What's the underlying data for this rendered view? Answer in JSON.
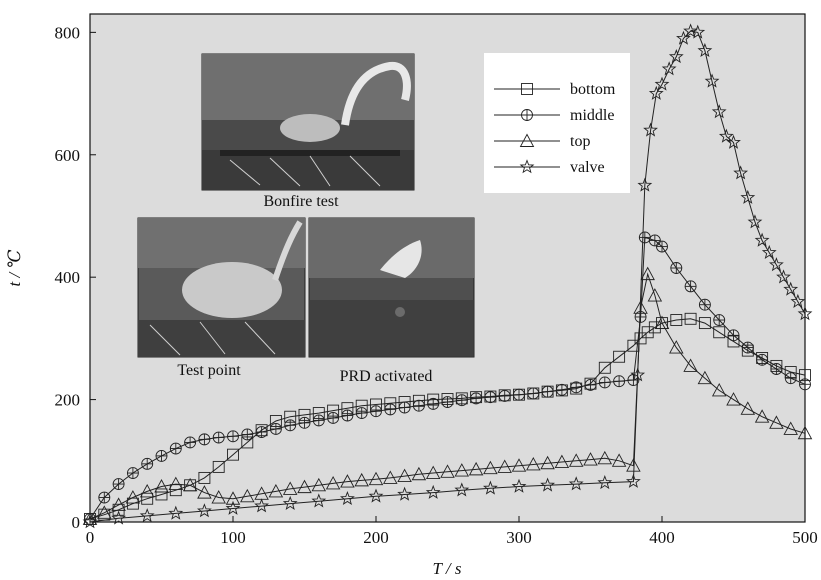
{
  "chart_data": {
    "type": "line",
    "title": "",
    "xlabel": "T / s",
    "ylabel": "t / ℃",
    "xlim": [
      0,
      500
    ],
    "ylim": [
      0,
      830
    ],
    "xticks": [
      0,
      100,
      200,
      300,
      400,
      500
    ],
    "yticks": [
      0,
      200,
      400,
      600,
      800
    ],
    "grid": false,
    "legend_position": "top-right",
    "background_color": "#dcdcdc",
    "series": [
      {
        "name": "bottom",
        "marker": "square",
        "x": [
          0,
          10,
          20,
          30,
          40,
          50,
          60,
          70,
          80,
          90,
          100,
          110,
          120,
          130,
          140,
          150,
          160,
          170,
          180,
          190,
          200,
          210,
          220,
          230,
          240,
          250,
          260,
          270,
          280,
          290,
          300,
          310,
          320,
          330,
          340,
          350,
          360,
          370,
          380,
          385,
          390,
          395,
          400,
          410,
          420,
          430,
          440,
          450,
          460,
          470,
          480,
          490,
          500
        ],
        "y": [
          5,
          12,
          20,
          30,
          38,
          45,
          52,
          60,
          72,
          90,
          110,
          130,
          150,
          165,
          172,
          175,
          178,
          182,
          186,
          190,
          192,
          194,
          196,
          198,
          200,
          201,
          202,
          204,
          205,
          207,
          208,
          210,
          213,
          215,
          218,
          226,
          252,
          270,
          288,
          300,
          310,
          318,
          325,
          330,
          332,
          325,
          310,
          295,
          280,
          268,
          255,
          245,
          240
        ]
      },
      {
        "name": "middle",
        "marker": "circle-plus",
        "x": [
          0,
          10,
          20,
          30,
          40,
          50,
          60,
          70,
          80,
          90,
          100,
          110,
          120,
          130,
          140,
          150,
          160,
          170,
          180,
          190,
          200,
          210,
          220,
          230,
          240,
          250,
          260,
          270,
          280,
          290,
          300,
          310,
          320,
          330,
          340,
          350,
          360,
          370,
          380,
          385,
          388,
          395,
          400,
          410,
          420,
          430,
          440,
          450,
          460,
          470,
          480,
          490,
          500
        ],
        "y": [
          5,
          40,
          62,
          80,
          95,
          108,
          120,
          130,
          135,
          138,
          140,
          143,
          147,
          152,
          158,
          162,
          166,
          170,
          174,
          178,
          181,
          184,
          187,
          190,
          193,
          196,
          199,
          202,
          204,
          206,
          208,
          210,
          213,
          216,
          220,
          224,
          228,
          230,
          232,
          335,
          465,
          460,
          450,
          415,
          385,
          355,
          330,
          305,
          285,
          265,
          250,
          235,
          225
        ]
      },
      {
        "name": "top",
        "marker": "triangle",
        "x": [
          0,
          10,
          20,
          30,
          40,
          50,
          60,
          70,
          80,
          90,
          100,
          110,
          120,
          130,
          140,
          150,
          160,
          170,
          180,
          190,
          200,
          210,
          220,
          230,
          240,
          250,
          260,
          270,
          280,
          290,
          300,
          310,
          320,
          330,
          340,
          350,
          360,
          370,
          380,
          385,
          390,
          395,
          400,
          410,
          420,
          430,
          440,
          450,
          460,
          470,
          480,
          490,
          500
        ],
        "y": [
          5,
          15,
          28,
          40,
          50,
          58,
          62,
          60,
          48,
          40,
          38,
          42,
          46,
          50,
          54,
          57,
          60,
          63,
          66,
          68,
          70,
          72,
          75,
          78,
          80,
          82,
          84,
          86,
          88,
          90,
          92,
          94,
          96,
          98,
          100,
          102,
          104,
          100,
          92,
          350,
          405,
          370,
          325,
          285,
          255,
          235,
          215,
          200,
          185,
          172,
          162,
          152,
          145
        ]
      },
      {
        "name": "valve",
        "marker": "star",
        "x": [
          0,
          20,
          40,
          60,
          80,
          100,
          120,
          140,
          160,
          180,
          200,
          220,
          240,
          260,
          280,
          300,
          320,
          340,
          360,
          380,
          383,
          388,
          392,
          396,
          400,
          405,
          410,
          415,
          420,
          425,
          430,
          435,
          440,
          445,
          450,
          455,
          460,
          465,
          470,
          475,
          480,
          485,
          490,
          495,
          500
        ],
        "y": [
          0,
          6,
          10,
          14,
          18,
          22,
          26,
          30,
          34,
          38,
          42,
          45,
          48,
          52,
          55,
          58,
          60,
          62,
          64,
          66,
          240,
          550,
          640,
          700,
          715,
          740,
          760,
          790,
          802,
          800,
          770,
          720,
          670,
          630,
          620,
          570,
          530,
          490,
          460,
          440,
          420,
          400,
          380,
          360,
          340
        ]
      }
    ]
  },
  "insets": {
    "bonfire_caption": "Bonfire test",
    "test_point_caption": "Test point",
    "prd_caption": "PRD activated"
  }
}
